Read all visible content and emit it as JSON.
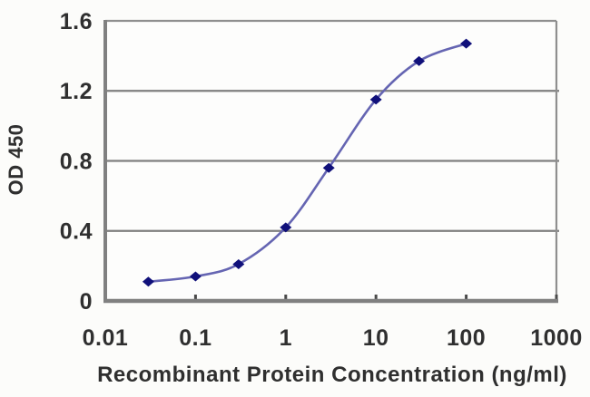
{
  "chart": {
    "title": "",
    "ylabel": "OD 450",
    "xlabel": "Recombinant Protein Concentration (ng/ml)"
  },
  "chart_data": {
    "type": "line",
    "x_scale": "log",
    "x": [
      0.03,
      0.1,
      0.3,
      1,
      3,
      10,
      30,
      100
    ],
    "y": [
      0.11,
      0.14,
      0.21,
      0.42,
      0.76,
      1.15,
      1.37,
      1.47
    ],
    "title": "",
    "xlabel": "Recombinant Protein Concentration (ng/ml)",
    "ylabel": "OD 450",
    "xlim": [
      0.01,
      1000
    ],
    "ylim": [
      0,
      1.6
    ],
    "x_ticks": [
      0.01,
      0.1,
      1,
      10,
      100,
      1000
    ],
    "x_tick_labels": [
      "0.01",
      "0.1",
      "1",
      "10",
      "100",
      "1000"
    ],
    "y_ticks": [
      0,
      0.4,
      0.8,
      1.2,
      1.6
    ],
    "y_tick_labels": [
      "0",
      "0.4",
      "0.8",
      "1.2",
      "1.6"
    ],
    "grid": "horizontal-only",
    "legend": "none",
    "marker_shape": "diamond",
    "colors": {
      "line": "#6565b2",
      "marker": "#10107a",
      "grid": "#7f7f7f",
      "border": "#8f8f8f",
      "axis": "#808080",
      "tick_mark": "#4a4a4a",
      "text": "#2f2f2f",
      "plot_background": "#fdfdfc",
      "page_background": "#fcfcfa"
    }
  }
}
